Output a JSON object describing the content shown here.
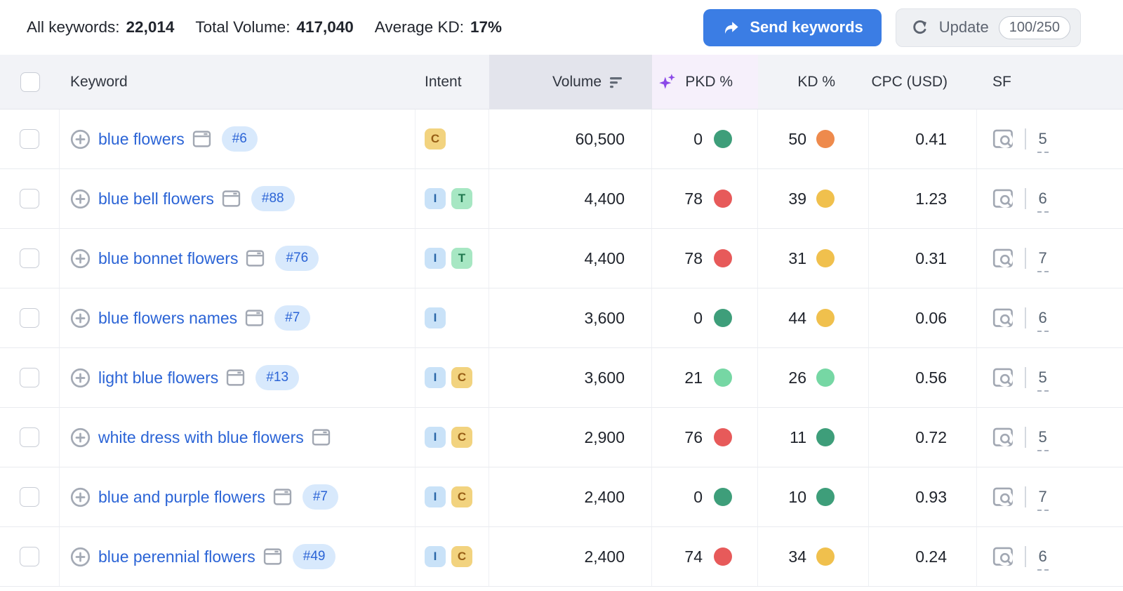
{
  "colors": {
    "accent_blue": "#3b7de4",
    "link_blue": "#2b64d6",
    "green_dark": "#3e9e7a",
    "green_light": "#76d7a4",
    "yellow": "#f0c04d",
    "orange": "#ee8a4c",
    "red": "#e75a5a",
    "sparkle_purple": "#8b49e8"
  },
  "topbar": {
    "stats": [
      {
        "label": "All keywords:",
        "value": "22,014"
      },
      {
        "label": "Total Volume:",
        "value": "417,040"
      },
      {
        "label": "Average KD:",
        "value": "17%"
      }
    ],
    "send_keywords_label": "Send keywords",
    "update_label": "Update",
    "update_count": "100/250"
  },
  "table": {
    "columns": {
      "keyword": "Keyword",
      "intent": "Intent",
      "volume": "Volume",
      "pkd": "PKD %",
      "kd": "KD %",
      "cpc": "CPC (USD)",
      "sf": "SF"
    },
    "rows": [
      {
        "keyword": "blue flowers",
        "position": "#6",
        "intents": [
          "C"
        ],
        "volume": "60,500",
        "pkd": "0",
        "pkd_color": "green_dark",
        "kd": "50",
        "kd_color": "orange",
        "cpc": "0.41",
        "sf": "5"
      },
      {
        "keyword": "blue bell flowers",
        "position": "#88",
        "intents": [
          "I",
          "T"
        ],
        "volume": "4,400",
        "pkd": "78",
        "pkd_color": "red",
        "kd": "39",
        "kd_color": "yellow",
        "cpc": "1.23",
        "sf": "6"
      },
      {
        "keyword": "blue bonnet flowers",
        "position": "#76",
        "intents": [
          "I",
          "T"
        ],
        "volume": "4,400",
        "pkd": "78",
        "pkd_color": "red",
        "kd": "31",
        "kd_color": "yellow",
        "cpc": "0.31",
        "sf": "7"
      },
      {
        "keyword": "blue flowers names",
        "position": "#7",
        "intents": [
          "I"
        ],
        "volume": "3,600",
        "pkd": "0",
        "pkd_color": "green_dark",
        "kd": "44",
        "kd_color": "yellow",
        "cpc": "0.06",
        "sf": "6"
      },
      {
        "keyword": "light blue flowers",
        "position": "#13",
        "intents": [
          "I",
          "C"
        ],
        "volume": "3,600",
        "pkd": "21",
        "pkd_color": "green_light",
        "kd": "26",
        "kd_color": "green_light",
        "cpc": "0.56",
        "sf": "5"
      },
      {
        "keyword": "white dress with blue flowers",
        "position": null,
        "intents": [
          "I",
          "C"
        ],
        "volume": "2,900",
        "pkd": "76",
        "pkd_color": "red",
        "kd": "11",
        "kd_color": "green_dark",
        "cpc": "0.72",
        "sf": "5"
      },
      {
        "keyword": "blue and purple flowers",
        "position": "#7",
        "intents": [
          "I",
          "C"
        ],
        "volume": "2,400",
        "pkd": "0",
        "pkd_color": "green_dark",
        "kd": "10",
        "kd_color": "green_dark",
        "cpc": "0.93",
        "sf": "7"
      },
      {
        "keyword": "blue perennial flowers",
        "position": "#49",
        "intents": [
          "I",
          "C"
        ],
        "volume": "2,400",
        "pkd": "74",
        "pkd_color": "red",
        "kd": "34",
        "kd_color": "yellow",
        "cpc": "0.24",
        "sf": "6"
      }
    ]
  }
}
